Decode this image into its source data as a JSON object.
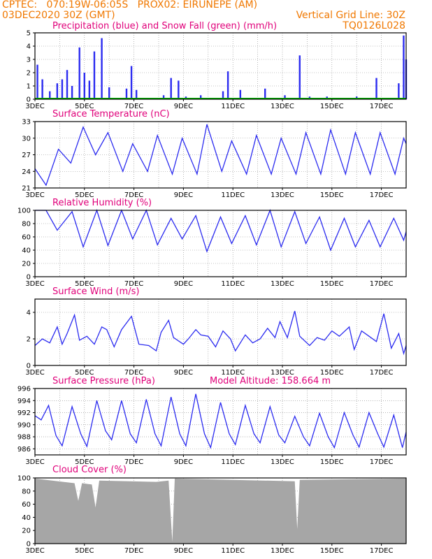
{
  "header": {
    "line1": "CPTEC:   070:19W-06:05S   PROX02: EIRUNEPE (AM)",
    "line2_left": "03DEC2020 30Z (GMT)",
    "line2_right": "Vertical Grid Line: 30Z",
    "line3_right": "TQ0126L028"
  },
  "x_tick_labels": [
    "3DEC",
    "5DEC",
    "7DEC",
    "9DEC",
    "11DEC",
    "13DEC",
    "15DEC",
    "17DEC"
  ],
  "colors": {
    "header": "#f07800",
    "title": "#e0007a",
    "series": "#2b2bf0",
    "snow": "#00b000",
    "cloud": "#a6a6a6"
  },
  "panels": [
    {
      "id": "precip",
      "title": "Precipitation (blue) and Snow Fall (green) (mm/h)",
      "ytick_labels": [
        "0",
        "1",
        "2",
        "3",
        "4",
        "5"
      ]
    },
    {
      "id": "temp",
      "title": "Surface Temperature (nC)",
      "ytick_labels": [
        "21",
        "24",
        "27",
        "30",
        "33"
      ]
    },
    {
      "id": "rh",
      "title": "Relative Humidity (%)",
      "ytick_labels": [
        "0",
        "20",
        "40",
        "60",
        "80",
        "100"
      ]
    },
    {
      "id": "wind",
      "title": "Surface Wind (m/s)",
      "ytick_labels": [
        "0",
        "2",
        "4"
      ]
    },
    {
      "id": "pres",
      "title": "Surface Pressure (hPa)",
      "extra": "Model Altitude: 158.664 m",
      "ytick_labels": [
        "986",
        "988",
        "990",
        "992",
        "994",
        "996"
      ]
    },
    {
      "id": "cloud",
      "title": "Cloud Cover (%)",
      "ytick_labels": [
        "0",
        "20",
        "40",
        "60",
        "80",
        "100"
      ]
    }
  ],
  "chart_data": [
    {
      "type": "bar",
      "title": "Precipitation (blue) and Snow Fall (green) (mm/h)",
      "xlabel": "",
      "ylabel": "",
      "x_range_days": [
        3,
        18
      ],
      "ylim": [
        0,
        5
      ],
      "series": [
        {
          "name": "Precipitation",
          "day_hour": [
            [
              3.1,
              2.6
            ],
            [
              3.3,
              1.5
            ],
            [
              3.6,
              0.6
            ],
            [
              3.9,
              1.2
            ],
            [
              4.1,
              1.5
            ],
            [
              4.3,
              2.2
            ],
            [
              4.5,
              1.0
            ],
            [
              4.8,
              3.9
            ],
            [
              5.0,
              2.0
            ],
            [
              5.2,
              1.4
            ],
            [
              5.4,
              3.6
            ],
            [
              5.7,
              4.6
            ],
            [
              6.0,
              0.9
            ],
            [
              6.7,
              0.8
            ],
            [
              6.9,
              2.5
            ],
            [
              7.1,
              0.7
            ],
            [
              8.2,
              0.3
            ],
            [
              8.5,
              1.6
            ],
            [
              8.8,
              1.4
            ],
            [
              9.1,
              0.2
            ],
            [
              9.7,
              0.3
            ],
            [
              10.6,
              0.6
            ],
            [
              10.8,
              2.1
            ],
            [
              11.3,
              0.7
            ],
            [
              12.3,
              0.8
            ],
            [
              13.1,
              0.3
            ],
            [
              13.7,
              3.3
            ],
            [
              14.1,
              0.2
            ],
            [
              14.8,
              0.2
            ],
            [
              15.3,
              0.1
            ],
            [
              16.0,
              0.2
            ],
            [
              16.8,
              1.6
            ],
            [
              17.7,
              1.2
            ],
            [
              17.9,
              4.8
            ],
            [
              18.0,
              3.0
            ]
          ]
        },
        {
          "name": "Snow Fall",
          "values": "0"
        }
      ]
    },
    {
      "type": "line",
      "title": "Surface Temperature (nC)",
      "ylim": [
        21,
        33
      ],
      "series": [
        {
          "name": "Temperature",
          "day_value": [
            [
              3.0,
              24.5
            ],
            [
              3.45,
              21.5
            ],
            [
              3.95,
              28.0
            ],
            [
              4.45,
              25.5
            ],
            [
              4.95,
              32.0
            ],
            [
              5.45,
              27.0
            ],
            [
              5.95,
              31.0
            ],
            [
              6.55,
              24.0
            ],
            [
              6.95,
              29.0
            ],
            [
              7.55,
              24.0
            ],
            [
              7.95,
              30.5
            ],
            [
              8.55,
              23.5
            ],
            [
              8.95,
              30.0
            ],
            [
              9.55,
              23.5
            ],
            [
              9.95,
              32.5
            ],
            [
              10.55,
              24.0
            ],
            [
              10.95,
              29.5
            ],
            [
              11.55,
              23.5
            ],
            [
              11.95,
              30.5
            ],
            [
              12.55,
              23.5
            ],
            [
              12.95,
              30.0
            ],
            [
              13.55,
              23.5
            ],
            [
              13.95,
              31.0
            ],
            [
              14.55,
              23.5
            ],
            [
              14.95,
              31.5
            ],
            [
              15.55,
              23.5
            ],
            [
              15.95,
              31.0
            ],
            [
              16.55,
              23.5
            ],
            [
              16.95,
              31.0
            ],
            [
              17.55,
              23.5
            ],
            [
              17.9,
              30.0
            ],
            [
              18.0,
              29.0
            ]
          ]
        }
      ]
    },
    {
      "type": "line",
      "title": "Relative Humidity (%)",
      "ylim": [
        0,
        100
      ],
      "series": [
        {
          "name": "Relative Humidity",
          "day_value": [
            [
              3.0,
              100
            ],
            [
              3.45,
              100
            ],
            [
              3.9,
              70
            ],
            [
              4.5,
              98
            ],
            [
              4.95,
              45
            ],
            [
              5.5,
              100
            ],
            [
              5.95,
              47
            ],
            [
              6.5,
              100
            ],
            [
              6.95,
              57
            ],
            [
              7.5,
              100
            ],
            [
              7.95,
              48
            ],
            [
              8.5,
              88
            ],
            [
              8.95,
              57
            ],
            [
              9.5,
              92
            ],
            [
              9.95,
              38
            ],
            [
              10.5,
              90
            ],
            [
              10.95,
              50
            ],
            [
              11.5,
              92
            ],
            [
              11.95,
              48
            ],
            [
              12.5,
              100
            ],
            [
              12.95,
              45
            ],
            [
              13.5,
              98
            ],
            [
              13.95,
              50
            ],
            [
              14.5,
              90
            ],
            [
              14.95,
              40
            ],
            [
              15.5,
              88
            ],
            [
              15.95,
              45
            ],
            [
              16.5,
              85
            ],
            [
              16.95,
              45
            ],
            [
              17.5,
              88
            ],
            [
              17.9,
              55
            ],
            [
              18.0,
              68
            ]
          ]
        }
      ]
    },
    {
      "type": "line",
      "title": "Surface Wind (m/s)",
      "ylim": [
        0,
        5
      ],
      "series": [
        {
          "name": "Wind speed",
          "day_value": [
            [
              3.0,
              1.5
            ],
            [
              3.3,
              2.0
            ],
            [
              3.6,
              1.7
            ],
            [
              3.9,
              2.9
            ],
            [
              4.1,
              1.6
            ],
            [
              4.3,
              2.4
            ],
            [
              4.6,
              3.8
            ],
            [
              4.8,
              1.9
            ],
            [
              5.1,
              2.2
            ],
            [
              5.4,
              1.6
            ],
            [
              5.7,
              2.9
            ],
            [
              5.9,
              2.7
            ],
            [
              6.2,
              1.4
            ],
            [
              6.5,
              2.7
            ],
            [
              6.9,
              3.7
            ],
            [
              7.2,
              1.6
            ],
            [
              7.6,
              1.5
            ],
            [
              7.9,
              1.1
            ],
            [
              8.1,
              2.5
            ],
            [
              8.4,
              3.4
            ],
            [
              8.6,
              2.1
            ],
            [
              9.0,
              1.6
            ],
            [
              9.2,
              2.0
            ],
            [
              9.5,
              2.7
            ],
            [
              9.7,
              2.3
            ],
            [
              10.0,
              2.2
            ],
            [
              10.3,
              1.4
            ],
            [
              10.6,
              2.6
            ],
            [
              10.9,
              2.0
            ],
            [
              11.1,
              1.1
            ],
            [
              11.5,
              2.3
            ],
            [
              11.8,
              1.7
            ],
            [
              12.1,
              2.0
            ],
            [
              12.4,
              2.8
            ],
            [
              12.7,
              2.1
            ],
            [
              12.9,
              3.3
            ],
            [
              13.2,
              2.1
            ],
            [
              13.5,
              4.1
            ],
            [
              13.7,
              2.2
            ],
            [
              14.1,
              1.5
            ],
            [
              14.4,
              2.1
            ],
            [
              14.7,
              1.9
            ],
            [
              15.0,
              2.6
            ],
            [
              15.3,
              2.2
            ],
            [
              15.7,
              2.9
            ],
            [
              15.9,
              1.2
            ],
            [
              16.2,
              2.6
            ],
            [
              16.5,
              2.2
            ],
            [
              16.8,
              1.8
            ],
            [
              17.1,
              3.9
            ],
            [
              17.4,
              1.3
            ],
            [
              17.7,
              2.4
            ],
            [
              17.9,
              0.9
            ],
            [
              18.0,
              1.5
            ]
          ]
        }
      ]
    },
    {
      "type": "line",
      "title": "Surface Pressure (hPa)",
      "ylim": [
        985,
        996
      ],
      "series": [
        {
          "name": "Pressure",
          "day_value": [
            [
              3.0,
              991.5
            ],
            [
              3.25,
              990.8
            ],
            [
              3.55,
              993.2
            ],
            [
              3.85,
              988.2
            ],
            [
              4.1,
              986.5
            ],
            [
              4.5,
              993.0
            ],
            [
              4.85,
              988.5
            ],
            [
              5.1,
              986.4
            ],
            [
              5.5,
              994.0
            ],
            [
              5.85,
              989.0
            ],
            [
              6.1,
              987.5
            ],
            [
              6.5,
              994.0
            ],
            [
              6.85,
              988.5
            ],
            [
              7.1,
              987.0
            ],
            [
              7.5,
              994.2
            ],
            [
              7.85,
              988.5
            ],
            [
              8.1,
              986.5
            ],
            [
              8.5,
              994.6
            ],
            [
              8.85,
              988.5
            ],
            [
              9.1,
              986.5
            ],
            [
              9.5,
              995.1
            ],
            [
              9.85,
              988.5
            ],
            [
              10.1,
              986.2
            ],
            [
              10.5,
              993.7
            ],
            [
              10.85,
              988.5
            ],
            [
              11.1,
              986.7
            ],
            [
              11.5,
              993.2
            ],
            [
              11.85,
              988.5
            ],
            [
              12.1,
              987.0
            ],
            [
              12.5,
              993.0
            ],
            [
              12.85,
              988.3
            ],
            [
              13.1,
              987.0
            ],
            [
              13.5,
              991.4
            ],
            [
              13.85,
              988.0
            ],
            [
              14.1,
              986.5
            ],
            [
              14.5,
              991.9
            ],
            [
              14.85,
              988.0
            ],
            [
              15.1,
              986.2
            ],
            [
              15.5,
              992.0
            ],
            [
              15.85,
              988.3
            ],
            [
              16.1,
              986.3
            ],
            [
              16.5,
              992.0
            ],
            [
              16.85,
              988.5
            ],
            [
              17.1,
              986.3
            ],
            [
              17.5,
              991.6
            ],
            [
              17.85,
              986.2
            ],
            [
              18.0,
              988.8
            ]
          ]
        }
      ]
    },
    {
      "type": "area",
      "title": "Cloud Cover (%)",
      "ylim": [
        0,
        100
      ],
      "series": [
        {
          "name": "Cloud Cover",
          "day_value": [
            [
              3.0,
              99
            ],
            [
              4.6,
              92
            ],
            [
              4.75,
              65
            ],
            [
              4.9,
              92
            ],
            [
              5.3,
              90
            ],
            [
              5.45,
              55
            ],
            [
              5.6,
              96
            ],
            [
              7.9,
              94
            ],
            [
              8.4,
              96
            ],
            [
              8.55,
              3
            ],
            [
              8.65,
              99
            ],
            [
              13.5,
              95
            ],
            [
              13.6,
              22
            ],
            [
              13.7,
              97
            ],
            [
              18.0,
              99
            ]
          ]
        }
      ]
    }
  ]
}
